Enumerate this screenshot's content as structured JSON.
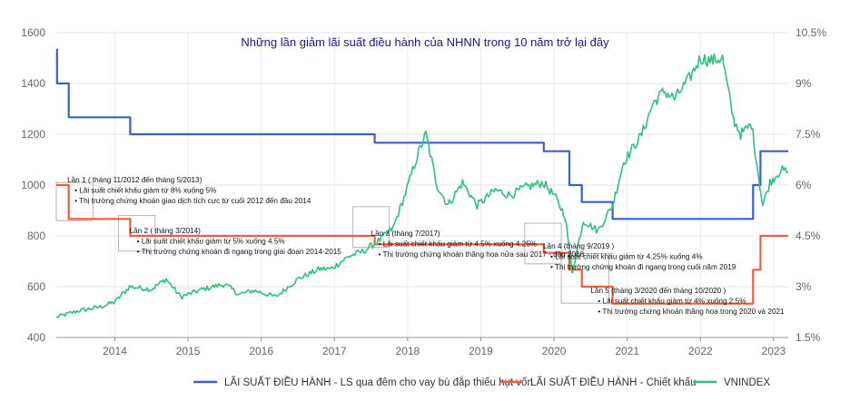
{
  "chart_data": {
    "type": "line",
    "title": "Những lần giảm lãi suất điều hành của NHNN trong 10 năm trở lại đây",
    "xlabel": "",
    "ylabel": "",
    "xlim": [
      2013.2,
      2023.2
    ],
    "ylim": [
      400,
      1600
    ],
    "y2lim": [
      1.5,
      10.5
    ],
    "x_ticks": [
      2014,
      2015,
      2016,
      2017,
      2018,
      2019,
      2020,
      2021,
      2022,
      2023
    ],
    "y_ticks": [
      400,
      600,
      800,
      1000,
      1200,
      1400,
      1600
    ],
    "y2_ticks": [
      "1.5%",
      "3%",
      "4.5%",
      "6%",
      "7.5%",
      "9%",
      "10.5%"
    ],
    "y2_tick_values": [
      1.5,
      3,
      4.5,
      6,
      7.5,
      9,
      10.5
    ],
    "grid": true,
    "legend_position": "bottom",
    "series": [
      {
        "name": "LÃI SUẤT ĐIỀU HÀNH - LS qua đêm cho vay bù đắp thiếu hụt vốn",
        "axis": "right",
        "color": "#3a5fcd",
        "step": true,
        "points": [
          [
            2013.2,
            10
          ],
          [
            2013.21,
            9
          ],
          [
            2013.37,
            8
          ],
          [
            2014.21,
            7.5
          ],
          [
            2017.55,
            7.25
          ],
          [
            2019.86,
            7.0
          ],
          [
            2020.21,
            6.0
          ],
          [
            2020.38,
            5.5
          ],
          [
            2020.8,
            5.0
          ],
          [
            2022.72,
            6.0
          ],
          [
            2022.82,
            7.0
          ],
          [
            2023.2,
            7.0
          ]
        ]
      },
      {
        "name": "LÃI SUẤT ĐIỀU HÀNH - Chiết khấu",
        "axis": "right",
        "color": "#f25c3c",
        "step": true,
        "points": [
          [
            2013.2,
            6
          ],
          [
            2013.37,
            5
          ],
          [
            2014.21,
            4.5
          ],
          [
            2017.55,
            4.25
          ],
          [
            2019.86,
            4.0
          ],
          [
            2020.21,
            3.5
          ],
          [
            2020.38,
            3.0
          ],
          [
            2020.8,
            2.5
          ],
          [
            2022.72,
            3.5
          ],
          [
            2022.82,
            4.5
          ],
          [
            2023.2,
            4.5
          ]
        ]
      },
      {
        "name": "VNINDEX",
        "axis": "left",
        "color": "#2ec27e",
        "step": false,
        "points": [
          [
            2013.2,
            480
          ],
          [
            2013.5,
            505
          ],
          [
            2013.8,
            520
          ],
          [
            2014.0,
            540
          ],
          [
            2014.2,
            600
          ],
          [
            2014.5,
            590
          ],
          [
            2014.7,
            630
          ],
          [
            2014.9,
            560
          ],
          [
            2015.2,
            590
          ],
          [
            2015.5,
            610
          ],
          [
            2015.7,
            570
          ],
          [
            2015.9,
            585
          ],
          [
            2016.2,
            560
          ],
          [
            2016.5,
            630
          ],
          [
            2016.8,
            670
          ],
          [
            2016.95,
            670
          ],
          [
            2017.2,
            720
          ],
          [
            2017.4,
            740
          ],
          [
            2017.6,
            780
          ],
          [
            2017.8,
            830
          ],
          [
            2017.95,
            950
          ],
          [
            2018.15,
            1130
          ],
          [
            2018.25,
            1200
          ],
          [
            2018.4,
            1000
          ],
          [
            2018.55,
            920
          ],
          [
            2018.75,
            1010
          ],
          [
            2018.95,
            920
          ],
          [
            2019.2,
            980
          ],
          [
            2019.4,
            960
          ],
          [
            2019.6,
            990
          ],
          [
            2019.85,
            1010
          ],
          [
            2020.0,
            960
          ],
          [
            2020.15,
            880
          ],
          [
            2020.25,
            660
          ],
          [
            2020.4,
            860
          ],
          [
            2020.6,
            820
          ],
          [
            2020.8,
            920
          ],
          [
            2020.95,
            1090
          ],
          [
            2021.2,
            1200
          ],
          [
            2021.35,
            1320
          ],
          [
            2021.5,
            1370
          ],
          [
            2021.65,
            1340
          ],
          [
            2021.85,
            1420
          ],
          [
            2022.0,
            1500
          ],
          [
            2022.15,
            1490
          ],
          [
            2022.3,
            1500
          ],
          [
            2022.45,
            1260
          ],
          [
            2022.55,
            1200
          ],
          [
            2022.7,
            1240
          ],
          [
            2022.75,
            1130
          ],
          [
            2022.85,
            920
          ],
          [
            2022.95,
            1010
          ],
          [
            2023.1,
            1060
          ],
          [
            2023.2,
            1050
          ]
        ]
      }
    ],
    "annotations": [
      {
        "x": 2013.35,
        "y": 1010,
        "lines": [
          "Lần 1 ( tháng 11/2012 đến tháng 5/2013)",
          "•  Lãi suất chiết khấu giảm từ 8% xuống 5%",
          "•  Thị trường chứng khoán giao dịch tích cực từ cuối 2012 đến đầu 2014"
        ]
      },
      {
        "x": 2014.2,
        "y": 810,
        "lines": [
          "Lần 2 ( tháng 3/2014)",
          "•  Lãi suất chiết khấu giảm từ 5% xuống 4.5%",
          "•  Thị trường chứng khoán đi ngang trong giai đoạn 2014-2015"
        ]
      },
      {
        "x": 2017.5,
        "y": 800,
        "lines": [
          "Lần 3 (tháng 7/2017)",
          "•  Lãi suất chiết khấu giảm từ 4.5% xuống 4.25%",
          "•  Thị trường chứng khoán thăng hoa nửa sau  2017 - đầu 2018"
        ]
      },
      {
        "x": 2019.85,
        "y": 750,
        "lines": [
          "Lần 4 (tháng 9/2019 )",
          "•  Lãi suất chiết khấu giảm từ 4.25% xuống 4%",
          "•  Thị trường chứng khoán đi ngang trong cuối năm 2019"
        ]
      },
      {
        "x": 2020.5,
        "y": 575,
        "lines": [
          "Lần 5 (tháng 3/2020 đến tháng 10/2020 )",
          "•  Lãi suất chiết khấu giảm từ 4% xuống 2.5%",
          "•  Thị trường chứng khoán thăng hoa trong 2020 và 2021"
        ]
      }
    ],
    "highlight_boxes": [
      {
        "x0": 2013.2,
        "x1": 2013.7,
        "y0": 860,
        "y1": 1010
      },
      {
        "x0": 2014.05,
        "x1": 2014.55,
        "y0": 740,
        "y1": 880
      },
      {
        "x0": 2017.25,
        "x1": 2017.75,
        "y0": 755,
        "y1": 915
      },
      {
        "x0": 2019.6,
        "x1": 2020.1,
        "y0": 690,
        "y1": 850
      },
      {
        "x0": 2020.1,
        "x1": 2020.75,
        "y0": 535,
        "y1": 730
      }
    ]
  }
}
